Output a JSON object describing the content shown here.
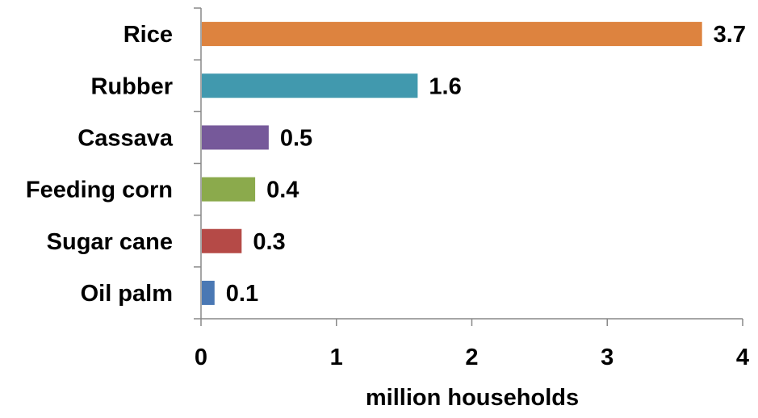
{
  "chart_data": {
    "type": "bar",
    "orientation": "horizontal",
    "title": "",
    "xlabel": "million households",
    "ylabel": "",
    "xlim": [
      0,
      4
    ],
    "x_ticks": [
      "0",
      "1",
      "2",
      "3",
      "4"
    ],
    "grid": false,
    "legend": "none",
    "categories": [
      "Rice",
      "Rubber",
      "Cassava",
      "Feeding corn",
      "Sugar cane",
      "Oil palm"
    ],
    "values": [
      3.7,
      1.6,
      0.5,
      0.4,
      0.3,
      0.1
    ],
    "value_labels": [
      "3.7",
      "1.6",
      "0.5",
      "0.4",
      "0.3",
      "0.1"
    ],
    "colors": [
      "#DD833F",
      "#4199AE",
      "#76599A",
      "#8BAA4C",
      "#B54A47",
      "#4A78B4"
    ]
  }
}
